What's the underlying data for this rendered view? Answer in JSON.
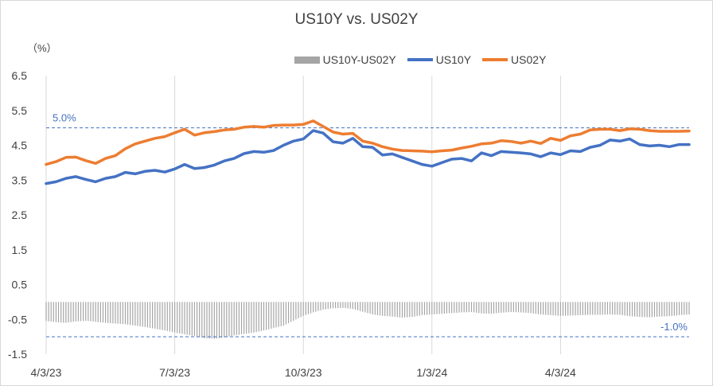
{
  "chart_data": {
    "type": "line",
    "title": "US10Y vs. US02Y",
    "ylabel": "（%）",
    "xlabel": "",
    "ylim": [
      -1.5,
      6.5
    ],
    "yticks": [
      "6.5",
      "5.5",
      "4.5",
      "3.5",
      "2.5",
      "1.5",
      "0.5",
      "-0.5",
      "-1.5"
    ],
    "ytick_values": [
      6.5,
      5.5,
      4.5,
      3.5,
      2.5,
      1.5,
      0.5,
      -0.5,
      -1.5
    ],
    "xticks": [
      "4/3/23",
      "7/3/23",
      "10/3/23",
      "1/3/24",
      "4/3/24"
    ],
    "xtick_index": [
      0,
      13,
      26,
      39,
      52
    ],
    "n_points": 66,
    "grid": "vertical lines at x ticks",
    "legend_position": "top",
    "reference_lines": [
      {
        "value": 5.0,
        "label": "5.0%",
        "label_side": "left"
      },
      {
        "value": -1.0,
        "label": "-1.0%",
        "label_side": "right"
      }
    ],
    "series": [
      {
        "name": "US10Y-US02Y",
        "type": "bar",
        "color": "#a5a5a5",
        "values": [
          -0.55,
          -0.58,
          -0.6,
          -0.56,
          -0.54,
          -0.57,
          -0.6,
          -0.62,
          -0.64,
          -0.68,
          -0.72,
          -0.77,
          -0.82,
          -0.88,
          -0.93,
          -0.98,
          -1.04,
          -1.06,
          -1.02,
          -0.96,
          -0.92,
          -0.88,
          -0.82,
          -0.75,
          -0.68,
          -0.54,
          -0.4,
          -0.3,
          -0.22,
          -0.18,
          -0.17,
          -0.2,
          -0.28,
          -0.36,
          -0.4,
          -0.42,
          -0.45,
          -0.43,
          -0.38,
          -0.36,
          -0.34,
          -0.32,
          -0.3,
          -0.29,
          -0.33,
          -0.34,
          -0.31,
          -0.29,
          -0.3,
          -0.32,
          -0.36,
          -0.38,
          -0.4,
          -0.39,
          -0.38,
          -0.37,
          -0.37,
          -0.36,
          -0.37,
          -0.41,
          -0.43,
          -0.44,
          -0.42,
          -0.41,
          -0.38,
          -0.36
        ]
      },
      {
        "name": "US10Y",
        "type": "line",
        "color": "#4472c4",
        "values": [
          3.4,
          3.45,
          3.55,
          3.6,
          3.52,
          3.45,
          3.55,
          3.6,
          3.72,
          3.68,
          3.75,
          3.78,
          3.73,
          3.82,
          3.95,
          3.83,
          3.86,
          3.93,
          4.05,
          4.12,
          4.26,
          4.32,
          4.3,
          4.35,
          4.5,
          4.62,
          4.68,
          4.92,
          4.85,
          4.6,
          4.56,
          4.7,
          4.46,
          4.44,
          4.22,
          4.25,
          4.15,
          4.05,
          3.95,
          3.9,
          4.0,
          4.1,
          4.12,
          4.05,
          4.28,
          4.2,
          4.32,
          4.3,
          4.28,
          4.25,
          4.17,
          4.28,
          4.23,
          4.34,
          4.32,
          4.44,
          4.5,
          4.65,
          4.62,
          4.68,
          4.52,
          4.48,
          4.5,
          4.46,
          4.52,
          4.52
        ]
      },
      {
        "name": "US02Y",
        "type": "line",
        "color": "#ed7d31",
        "values": [
          3.95,
          4.03,
          4.15,
          4.16,
          4.06,
          3.98,
          4.12,
          4.2,
          4.4,
          4.54,
          4.62,
          4.7,
          4.75,
          4.86,
          4.96,
          4.79,
          4.86,
          4.89,
          4.94,
          4.96,
          5.02,
          5.04,
          5.02,
          5.07,
          5.08,
          5.08,
          5.1,
          5.2,
          5.04,
          4.88,
          4.82,
          4.84,
          4.62,
          4.56,
          4.46,
          4.39,
          4.35,
          4.34,
          4.33,
          4.31,
          4.34,
          4.36,
          4.42,
          4.47,
          4.54,
          4.56,
          4.63,
          4.61,
          4.56,
          4.62,
          4.55,
          4.7,
          4.64,
          4.77,
          4.82,
          4.94,
          4.96,
          4.96,
          4.92,
          4.97,
          4.96,
          4.92,
          4.9,
          4.9,
          4.9,
          4.91
        ]
      }
    ]
  }
}
